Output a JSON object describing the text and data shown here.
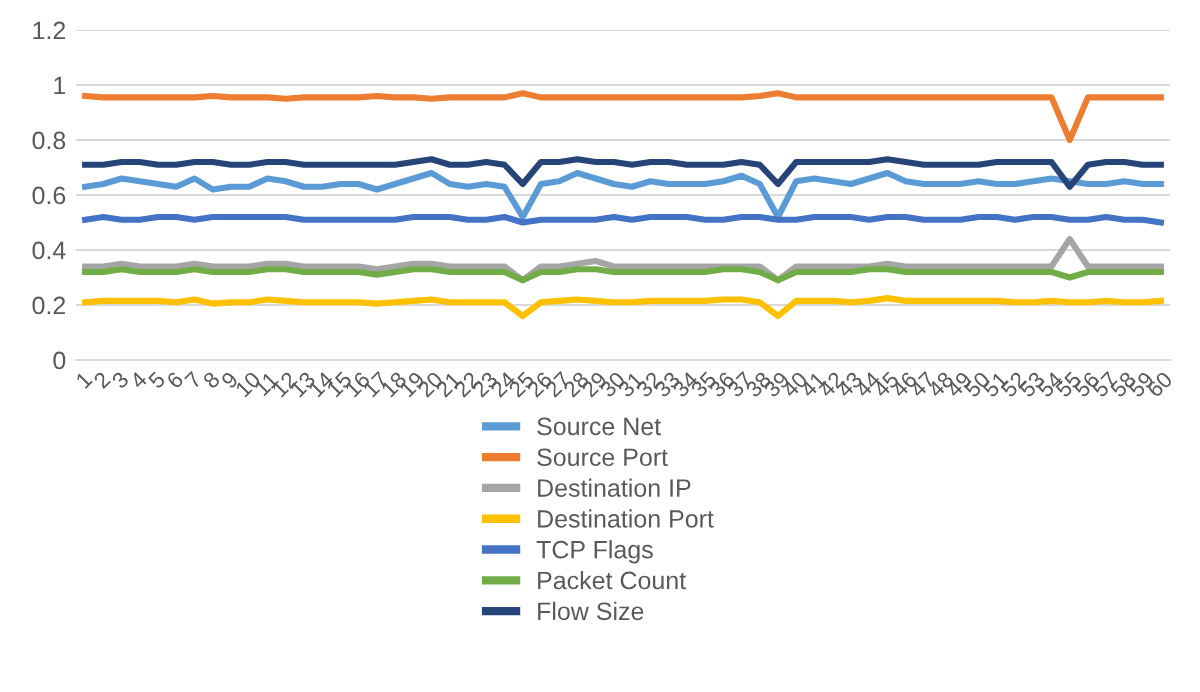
{
  "chart_data": {
    "type": "line",
    "categories": [
      "1",
      "2",
      "3",
      "4",
      "5",
      "6",
      "7",
      "8",
      "9",
      "10",
      "11",
      "12",
      "13",
      "14",
      "15",
      "16",
      "17",
      "18",
      "19",
      "20",
      "21",
      "22",
      "23",
      "24",
      "25",
      "26",
      "27",
      "28",
      "29",
      "30",
      "31",
      "32",
      "33",
      "34",
      "35",
      "36",
      "37",
      "38",
      "39",
      "40",
      "41",
      "42",
      "43",
      "44",
      "45",
      "46",
      "47",
      "48",
      "49",
      "50",
      "51",
      "52",
      "53",
      "54",
      "55",
      "56",
      "57",
      "58",
      "59",
      "60"
    ],
    "ylim": [
      0,
      1.2
    ],
    "yticks": [
      0,
      0.2,
      0.4,
      0.6,
      0.8,
      1,
      1.2
    ],
    "grid": "y",
    "legend": "bottom",
    "marker": "none",
    "line_style": "solid",
    "series": [
      {
        "name": "Source Net",
        "color": "#5b9bd5",
        "values": [
          0.63,
          0.64,
          0.66,
          0.65,
          0.64,
          0.63,
          0.66,
          0.62,
          0.63,
          0.63,
          0.66,
          0.65,
          0.63,
          0.63,
          0.64,
          0.64,
          0.62,
          0.64,
          0.66,
          0.68,
          0.64,
          0.63,
          0.64,
          0.63,
          0.52,
          0.64,
          0.65,
          0.68,
          0.66,
          0.64,
          0.63,
          0.65,
          0.64,
          0.64,
          0.64,
          0.65,
          0.67,
          0.64,
          0.52,
          0.65,
          0.66,
          0.65,
          0.64,
          0.66,
          0.68,
          0.65,
          0.64,
          0.64,
          0.64,
          0.65,
          0.64,
          0.64,
          0.65,
          0.66,
          0.65,
          0.64,
          0.64,
          0.65,
          0.64,
          0.64
        ]
      },
      {
        "name": "Source Port",
        "color": "#ed7d31",
        "values": [
          0.96,
          0.955,
          0.955,
          0.955,
          0.955,
          0.955,
          0.955,
          0.96,
          0.955,
          0.955,
          0.955,
          0.95,
          0.955,
          0.955,
          0.955,
          0.955,
          0.96,
          0.955,
          0.955,
          0.95,
          0.955,
          0.955,
          0.955,
          0.955,
          0.97,
          0.955,
          0.955,
          0.955,
          0.955,
          0.955,
          0.955,
          0.955,
          0.955,
          0.955,
          0.955,
          0.955,
          0.955,
          0.96,
          0.97,
          0.955,
          0.955,
          0.955,
          0.955,
          0.955,
          0.955,
          0.955,
          0.955,
          0.955,
          0.955,
          0.955,
          0.955,
          0.955,
          0.955,
          0.955,
          0.8,
          0.955,
          0.955,
          0.955,
          0.955,
          0.955
        ]
      },
      {
        "name": "Destination IP",
        "color": "#a5a5a5",
        "values": [
          0.34,
          0.34,
          0.35,
          0.34,
          0.34,
          0.34,
          0.35,
          0.34,
          0.34,
          0.34,
          0.35,
          0.35,
          0.34,
          0.34,
          0.34,
          0.34,
          0.33,
          0.34,
          0.35,
          0.35,
          0.34,
          0.34,
          0.34,
          0.34,
          0.29,
          0.34,
          0.34,
          0.35,
          0.36,
          0.34,
          0.34,
          0.34,
          0.34,
          0.34,
          0.34,
          0.34,
          0.34,
          0.34,
          0.29,
          0.34,
          0.34,
          0.34,
          0.34,
          0.34,
          0.35,
          0.34,
          0.34,
          0.34,
          0.34,
          0.34,
          0.34,
          0.34,
          0.34,
          0.34,
          0.44,
          0.34,
          0.34,
          0.34,
          0.34,
          0.34
        ]
      },
      {
        "name": "Destination Port",
        "color": "#ffc000",
        "values": [
          0.21,
          0.215,
          0.215,
          0.215,
          0.215,
          0.21,
          0.22,
          0.205,
          0.21,
          0.21,
          0.22,
          0.215,
          0.21,
          0.21,
          0.21,
          0.21,
          0.205,
          0.21,
          0.215,
          0.22,
          0.21,
          0.21,
          0.21,
          0.21,
          0.16,
          0.21,
          0.215,
          0.22,
          0.215,
          0.21,
          0.21,
          0.215,
          0.215,
          0.215,
          0.215,
          0.22,
          0.22,
          0.21,
          0.16,
          0.215,
          0.215,
          0.215,
          0.21,
          0.215,
          0.225,
          0.215,
          0.215,
          0.215,
          0.215,
          0.215,
          0.215,
          0.21,
          0.21,
          0.215,
          0.21,
          0.21,
          0.215,
          0.21,
          0.21,
          0.215
        ]
      },
      {
        "name": "TCP Flags",
        "color": "#4472c4",
        "values": [
          0.51,
          0.52,
          0.51,
          0.51,
          0.52,
          0.52,
          0.51,
          0.52,
          0.52,
          0.52,
          0.52,
          0.52,
          0.51,
          0.51,
          0.51,
          0.51,
          0.51,
          0.51,
          0.52,
          0.52,
          0.52,
          0.51,
          0.51,
          0.52,
          0.5,
          0.51,
          0.51,
          0.51,
          0.51,
          0.52,
          0.51,
          0.52,
          0.52,
          0.52,
          0.51,
          0.51,
          0.52,
          0.52,
          0.51,
          0.51,
          0.52,
          0.52,
          0.52,
          0.51,
          0.52,
          0.52,
          0.51,
          0.51,
          0.51,
          0.52,
          0.52,
          0.51,
          0.52,
          0.52,
          0.51,
          0.51,
          0.52,
          0.51,
          0.51,
          0.5
        ]
      },
      {
        "name": "Packet Count",
        "color": "#70ad47",
        "values": [
          0.32,
          0.32,
          0.33,
          0.32,
          0.32,
          0.32,
          0.33,
          0.32,
          0.32,
          0.32,
          0.33,
          0.33,
          0.32,
          0.32,
          0.32,
          0.32,
          0.31,
          0.32,
          0.33,
          0.33,
          0.32,
          0.32,
          0.32,
          0.32,
          0.29,
          0.32,
          0.32,
          0.33,
          0.33,
          0.32,
          0.32,
          0.32,
          0.32,
          0.32,
          0.32,
          0.33,
          0.33,
          0.32,
          0.29,
          0.32,
          0.32,
          0.32,
          0.32,
          0.33,
          0.33,
          0.32,
          0.32,
          0.32,
          0.32,
          0.32,
          0.32,
          0.32,
          0.32,
          0.32,
          0.3,
          0.32,
          0.32,
          0.32,
          0.32,
          0.32
        ]
      },
      {
        "name": "Flow Size",
        "color": "#264478",
        "values": [
          0.71,
          0.71,
          0.72,
          0.72,
          0.71,
          0.71,
          0.72,
          0.72,
          0.71,
          0.71,
          0.72,
          0.72,
          0.71,
          0.71,
          0.71,
          0.71,
          0.71,
          0.71,
          0.72,
          0.73,
          0.71,
          0.71,
          0.72,
          0.71,
          0.64,
          0.72,
          0.72,
          0.73,
          0.72,
          0.72,
          0.71,
          0.72,
          0.72,
          0.71,
          0.71,
          0.71,
          0.72,
          0.71,
          0.64,
          0.72,
          0.72,
          0.72,
          0.72,
          0.72,
          0.73,
          0.72,
          0.71,
          0.71,
          0.71,
          0.71,
          0.72,
          0.72,
          0.72,
          0.72,
          0.63,
          0.71,
          0.72,
          0.72,
          0.71,
          0.71
        ]
      }
    ]
  }
}
